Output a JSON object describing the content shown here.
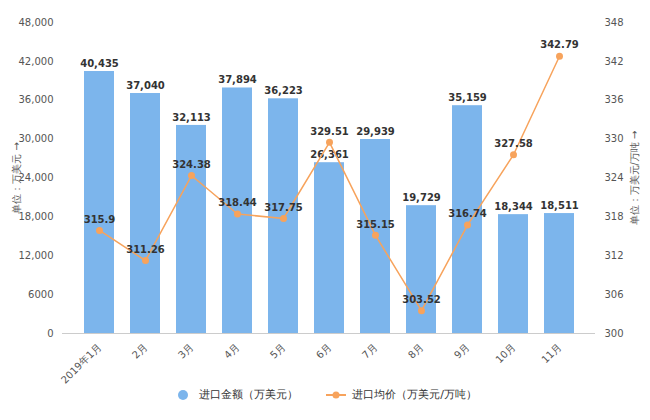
{
  "chart_data": {
    "type": "bar",
    "categories": [
      "2019年1月",
      "2月",
      "3月",
      "4月",
      "5月",
      "6月",
      "7月",
      "8月",
      "9月",
      "10月",
      "11月"
    ],
    "series": [
      {
        "name": "进口金额（万美元）",
        "type": "bar",
        "color": "#7cb5ec",
        "values": [
          40435,
          37040,
          32113,
          37894,
          36223,
          26361,
          29939,
          19729,
          35159,
          18344,
          18511
        ],
        "value_labels": [
          "40,435",
          "37,040",
          "32,113",
          "37,894",
          "36,223",
          "26,361",
          "29,939",
          "19,729",
          "35,159",
          "18,344",
          "18,511"
        ]
      },
      {
        "name": "进口均价（万美元/万吨）",
        "type": "line",
        "axis": "y2",
        "color": "#f7a35c",
        "marker": "circle",
        "values": [
          315.9,
          311.26,
          324.38,
          318.44,
          317.75,
          329.51,
          315.15,
          303.52,
          316.74,
          327.58,
          342.79
        ]
      }
    ],
    "ylabel": "单位：万美元",
    "y2label": "单位：万美元/万吨",
    "ylim": [
      0,
      48000
    ],
    "yticks": [
      0,
      6000,
      {
        "value": 12000,
        "label": "12,000"
      },
      {
        "value": 18000,
        "label": "18,000"
      },
      {
        "value": 24000,
        "label": "24,000"
      },
      {
        "value": 30000,
        "label": "30,000"
      },
      {
        "value": 36000,
        "label": "36,000"
      },
      {
        "value": 42000,
        "label": "42,000"
      },
      {
        "value": 48000,
        "label": "48,000"
      }
    ],
    "y2lim": [
      300,
      348
    ],
    "y2ticks": [
      300,
      306,
      312,
      318,
      324,
      330,
      336,
      342,
      348
    ],
    "data_labels": true,
    "grid": false,
    "legend": "bottom"
  }
}
